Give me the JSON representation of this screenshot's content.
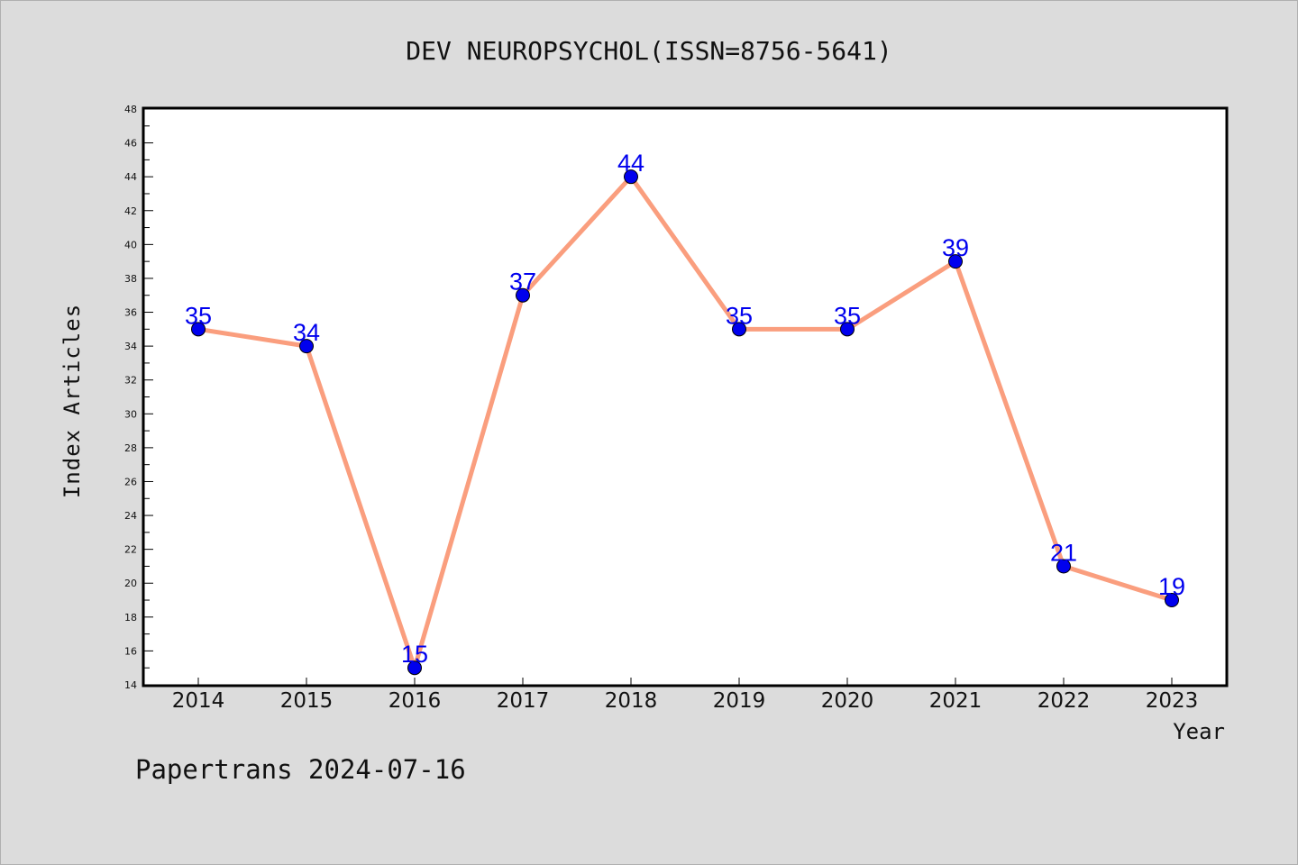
{
  "chart_data": {
    "type": "line",
    "title": "DEV NEUROPSYCHOL(ISSN=8756-5641)",
    "xlabel": "Year",
    "ylabel": "Index Articles",
    "categories": [
      "2014",
      "2015",
      "2016",
      "2017",
      "2018",
      "2019",
      "2020",
      "2021",
      "2022",
      "2023"
    ],
    "series": [
      {
        "values": [
          35,
          34,
          15,
          37,
          44,
          35,
          35,
          39,
          21,
          19
        ]
      }
    ],
    "ylim": [
      14,
      48
    ],
    "yticks": [
      14,
      16,
      18,
      20,
      22,
      24,
      26,
      28,
      30,
      32,
      34,
      36,
      38,
      40,
      42,
      44,
      46,
      48
    ],
    "grid": false,
    "line_color": "#fa9e7e",
    "marker_color": "#0000ee",
    "label_color": "#0000ee"
  },
  "footer": "Papertrans 2024-07-16"
}
